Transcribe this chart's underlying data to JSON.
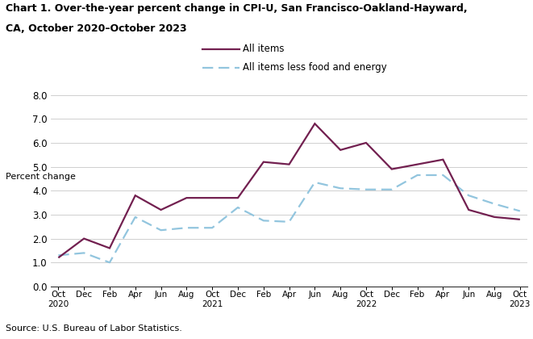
{
  "title_line1": "Chart 1. Over-the-year percent change in CPI-U, San Francisco-Oakland-Hayward,",
  "title_line2": "CA, October 2020–October 2023",
  "ylabel": "Percent change",
  "source": "Source: U.S. Bureau of Labor Statistics.",
  "legend1": "All items",
  "legend2": "All items less food and energy",
  "ylim": [
    0.0,
    8.0
  ],
  "yticks": [
    0.0,
    1.0,
    2.0,
    3.0,
    4.0,
    5.0,
    6.0,
    7.0,
    8.0
  ],
  "color_all_items": "#722050",
  "color_core": "#92C5DE",
  "tick_labels": [
    "Oct\n2020",
    "Dec",
    "Feb",
    "Apr",
    "Jun",
    "Aug",
    "Oct\n2021",
    "Dec",
    "Feb",
    "Apr",
    "Jun",
    "Aug",
    "Oct\n2022",
    "Dec",
    "Feb",
    "Apr",
    "Jun",
    "Aug",
    "Oct\n2023"
  ],
  "all_items": [
    1.2,
    2.0,
    1.6,
    3.8,
    3.2,
    3.7,
    3.7,
    3.7,
    5.2,
    5.1,
    6.8,
    5.7,
    6.0,
    4.9,
    5.1,
    5.3,
    3.2,
    2.9,
    2.8
  ],
  "core": [
    1.3,
    1.4,
    1.0,
    2.9,
    2.35,
    2.45,
    2.45,
    3.3,
    2.75,
    2.7,
    4.35,
    4.1,
    4.05,
    4.05,
    4.65,
    4.65,
    3.8,
    3.45,
    3.15
  ]
}
